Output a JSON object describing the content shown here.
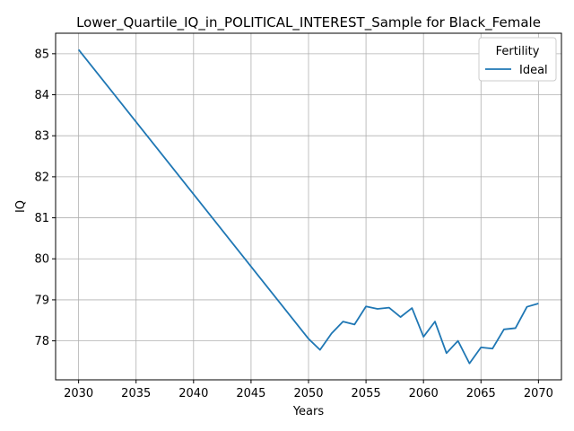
{
  "chart_data": {
    "type": "line",
    "title": "Lower_Quartile_IQ_in_POLITICAL_INTEREST_Sample for Black_Female",
    "xlabel": "Years",
    "ylabel": "IQ",
    "xlim": [
      2028,
      2072
    ],
    "ylim": [
      77.05,
      85.5
    ],
    "xticks": [
      2030,
      2035,
      2040,
      2045,
      2050,
      2055,
      2060,
      2065,
      2070
    ],
    "yticks": [
      78,
      79,
      80,
      81,
      82,
      83,
      84,
      85
    ],
    "grid": true,
    "legend": {
      "title": "Fertility",
      "placement": "top-right"
    },
    "series": [
      {
        "name": "Ideal",
        "color": "#1f77b4",
        "x": [
          2030,
          2050,
          2051,
          2052,
          2053,
          2054,
          2055,
          2056,
          2057,
          2058,
          2059,
          2060,
          2061,
          2062,
          2063,
          2064,
          2065,
          2066,
          2067,
          2068,
          2069,
          2070
        ],
        "y": [
          85.1,
          78.05,
          77.78,
          78.18,
          78.47,
          78.4,
          78.84,
          78.78,
          78.81,
          78.58,
          78.8,
          78.1,
          78.47,
          77.7,
          78.0,
          77.45,
          77.84,
          77.81,
          78.28,
          78.31,
          78.83,
          78.91
        ]
      }
    ]
  }
}
